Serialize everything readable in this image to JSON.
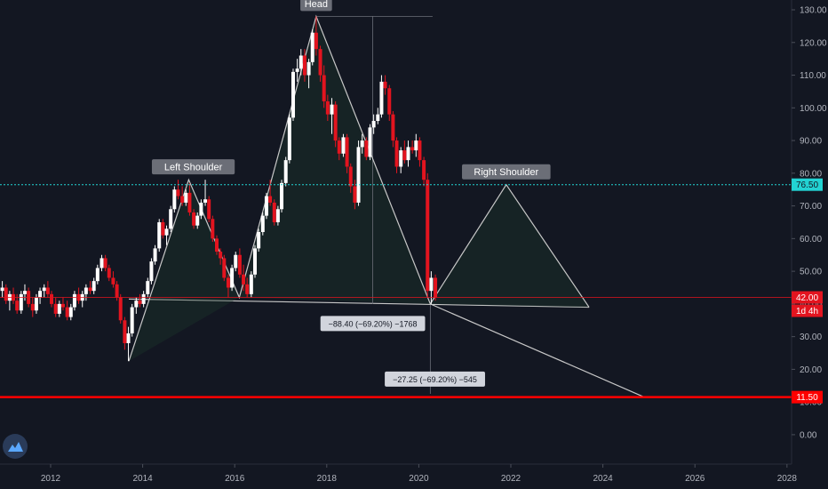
{
  "colors": {
    "background": "#131722",
    "up_candle": "#ffffff",
    "down_candle": "#e3141f",
    "neckline": "#c8c8c8",
    "horizontal_red": "#ff0000",
    "cyan_level": "#22d3d3",
    "label_box": "#6b6e77",
    "axis_text": "#b2b5be"
  },
  "chart_data": {
    "type": "candlestick",
    "y_axis": {
      "range": [
        -9,
        133
      ],
      "ticks": [
        "130.00",
        "120.00",
        "110.00",
        "100.00",
        "90.00",
        "80.00",
        "70.00",
        "60.00",
        "50.00",
        "40.00",
        "30.00",
        "20.00",
        "10.00",
        "0.00"
      ]
    },
    "x_axis": {
      "range": [
        2010.9,
        2028.1
      ],
      "ticks": [
        "2012",
        "2014",
        "2016",
        "2018",
        "2020",
        "2022",
        "2024",
        "2026",
        "2028"
      ]
    },
    "horizontal_levels": [
      {
        "value": 76.5,
        "label": "76.50",
        "style": "dotted",
        "color": "#22d3d3"
      },
      {
        "value": 42.0,
        "label": "42.00",
        "style": "solid-thin",
        "color": "#e3141f"
      },
      {
        "value": 11.5,
        "label": "11.50",
        "style": "solid-thick",
        "color": "#ff0000"
      }
    ],
    "countdown_label": "1d 4h",
    "annotations": [
      {
        "text": "Head",
        "x": 2017.77,
        "y": 128
      },
      {
        "text": "Left Shoulder",
        "x": 2015.1,
        "y": 78
      },
      {
        "text": "Right Shoulder",
        "x": 2021.9,
        "y": 76.5
      }
    ],
    "measurements": [
      {
        "text": "−88.40 (−69.20%) −1768",
        "x": 2019.0,
        "y": 34
      },
      {
        "text": "−27.25 (−69.20%) −545",
        "x": 2020.35,
        "y": 17
      }
    ],
    "pattern_lines": [
      [
        [
          2013.7,
          22.5
        ],
        [
          2015.0,
          78
        ],
        [
          2016.1,
          42
        ],
        [
          2017.77,
          128
        ],
        [
          2020.25,
          40
        ],
        [
          2021.9,
          76.5
        ],
        [
          2023.7,
          39
        ]
      ],
      [
        [
          2020.25,
          40
        ],
        [
          2024.9,
          11.5
        ]
      ]
    ],
    "neckline": [
      [
        2013.7,
        41.5
      ],
      [
        2023.7,
        39
      ]
    ],
    "measure_guides": [
      {
        "from": [
          2017.77,
          128
        ],
        "to": [
          2020.3,
          128
        ]
      },
      {
        "from": [
          2019.0,
          128
        ],
        "to": [
          2019.0,
          40
        ]
      },
      {
        "from": [
          2020.25,
          40
        ],
        "to": [
          2020.25,
          12.5
        ]
      }
    ],
    "candles": [
      [
        2010.95,
        44,
        47,
        42,
        45
      ],
      [
        2011.03,
        45,
        46,
        40,
        41
      ],
      [
        2011.11,
        41,
        44,
        38,
        43
      ],
      [
        2011.19,
        43,
        45,
        40,
        41
      ],
      [
        2011.27,
        41,
        43,
        37,
        38
      ],
      [
        2011.36,
        38,
        44,
        37,
        43
      ],
      [
        2011.44,
        43,
        46,
        41,
        44
      ],
      [
        2011.52,
        44,
        45,
        39,
        40
      ],
      [
        2011.61,
        40,
        42,
        36,
        38
      ],
      [
        2011.69,
        38,
        43,
        37,
        42
      ],
      [
        2011.77,
        42,
        45,
        40,
        44
      ],
      [
        2011.86,
        44,
        46,
        42,
        45
      ],
      [
        2011.94,
        45,
        47,
        42,
        43
      ],
      [
        2012.02,
        43,
        44,
        39,
        40
      ],
      [
        2012.11,
        40,
        42,
        36,
        37
      ],
      [
        2012.19,
        37,
        41,
        36,
        40
      ],
      [
        2012.27,
        40,
        42,
        38,
        39
      ],
      [
        2012.36,
        39,
        41,
        35,
        36
      ],
      [
        2012.44,
        36,
        40,
        35,
        39
      ],
      [
        2012.52,
        39,
        44,
        38,
        43
      ],
      [
        2012.61,
        43,
        45,
        40,
        41
      ],
      [
        2012.69,
        41,
        44,
        39,
        43
      ],
      [
        2012.77,
        43,
        46,
        41,
        45
      ],
      [
        2012.86,
        45,
        47,
        43,
        44
      ],
      [
        2012.94,
        44,
        48,
        43,
        47
      ],
      [
        2013.02,
        47,
        52,
        46,
        51
      ],
      [
        2013.11,
        51,
        55,
        50,
        54
      ],
      [
        2013.19,
        54,
        55,
        50,
        51
      ],
      [
        2013.27,
        51,
        52,
        47,
        48
      ],
      [
        2013.36,
        48,
        50,
        45,
        46
      ],
      [
        2013.44,
        46,
        47,
        41,
        42
      ],
      [
        2013.52,
        42,
        43,
        34,
        35
      ],
      [
        2013.61,
        35,
        36,
        26,
        28
      ],
      [
        2013.69,
        28,
        33,
        22.5,
        31
      ],
      [
        2013.77,
        31,
        40,
        30,
        39
      ],
      [
        2013.86,
        39,
        42,
        37,
        41
      ],
      [
        2013.94,
        41,
        43,
        39,
        40
      ],
      [
        2014.02,
        40,
        44,
        39,
        43
      ],
      [
        2014.11,
        43,
        48,
        42,
        47
      ],
      [
        2014.19,
        47,
        54,
        46,
        53
      ],
      [
        2014.27,
        53,
        58,
        52,
        57
      ],
      [
        2014.36,
        57,
        66,
        56,
        65
      ],
      [
        2014.44,
        65,
        66,
        60,
        61
      ],
      [
        2014.52,
        61,
        64,
        58,
        63
      ],
      [
        2014.61,
        63,
        70,
        62,
        69
      ],
      [
        2014.69,
        69,
        76,
        68,
        75
      ],
      [
        2014.77,
        75,
        78,
        72,
        73
      ],
      [
        2014.86,
        73,
        76,
        70,
        71
      ],
      [
        2014.94,
        71,
        75,
        70,
        74
      ],
      [
        2015.02,
        74,
        77,
        67,
        68
      ],
      [
        2015.11,
        68,
        69,
        63,
        64
      ],
      [
        2015.19,
        64,
        68,
        63,
        67
      ],
      [
        2015.27,
        67,
        72,
        66,
        71
      ],
      [
        2015.36,
        71,
        78,
        70,
        72
      ],
      [
        2015.44,
        72,
        73,
        65,
        66
      ],
      [
        2015.52,
        66,
        67,
        59,
        60
      ],
      [
        2015.61,
        60,
        61,
        55,
        56
      ],
      [
        2015.69,
        56,
        57,
        52,
        54
      ],
      [
        2015.77,
        54,
        55,
        47,
        48
      ],
      [
        2015.86,
        48,
        49,
        42,
        45
      ],
      [
        2015.94,
        45,
        52,
        44,
        51
      ],
      [
        2016.02,
        51,
        56,
        50,
        55
      ],
      [
        2016.11,
        55,
        57,
        48,
        49
      ],
      [
        2016.19,
        49,
        52,
        44,
        46
      ],
      [
        2016.27,
        46,
        48,
        42,
        43
      ],
      [
        2016.36,
        43,
        50,
        42,
        49
      ],
      [
        2016.44,
        49,
        58,
        48,
        57
      ],
      [
        2016.52,
        57,
        63,
        56,
        62
      ],
      [
        2016.61,
        62,
        68,
        61,
        67
      ],
      [
        2016.69,
        67,
        74,
        66,
        73
      ],
      [
        2016.77,
        73,
        78,
        70,
        71
      ],
      [
        2016.86,
        71,
        72,
        64,
        65
      ],
      [
        2016.94,
        65,
        70,
        64,
        69
      ],
      [
        2017.02,
        69,
        78,
        68,
        77
      ],
      [
        2017.11,
        77,
        85,
        76,
        84
      ],
      [
        2017.19,
        84,
        98,
        83,
        97
      ],
      [
        2017.27,
        97,
        112,
        96,
        111
      ],
      [
        2017.36,
        111,
        115,
        108,
        112
      ],
      [
        2017.44,
        112,
        118,
        110,
        116
      ],
      [
        2017.52,
        116,
        118,
        108,
        110
      ],
      [
        2017.61,
        110,
        115,
        106,
        114
      ],
      [
        2017.69,
        114,
        124,
        113,
        123
      ],
      [
        2017.77,
        123,
        128,
        116,
        118
      ],
      [
        2017.86,
        118,
        119,
        108,
        110
      ],
      [
        2017.94,
        110,
        113,
        100,
        102
      ],
      [
        2018.02,
        102,
        104,
        96,
        98
      ],
      [
        2018.11,
        98,
        103,
        92,
        101
      ],
      [
        2018.19,
        101,
        102,
        88,
        90
      ],
      [
        2018.27,
        90,
        91,
        84,
        86
      ],
      [
        2018.36,
        86,
        92,
        85,
        91
      ],
      [
        2018.44,
        91,
        92,
        80,
        82
      ],
      [
        2018.52,
        82,
        83,
        74,
        76
      ],
      [
        2018.61,
        76,
        78,
        69,
        71
      ],
      [
        2018.69,
        71,
        90,
        70,
        88
      ],
      [
        2018.77,
        88,
        92,
        86,
        90
      ],
      [
        2018.86,
        90,
        91,
        84,
        85
      ],
      [
        2018.94,
        85,
        95,
        84,
        94
      ],
      [
        2019.02,
        94,
        98,
        92,
        96
      ],
      [
        2019.11,
        96,
        100,
        95,
        98
      ],
      [
        2019.19,
        98,
        110,
        97,
        108
      ],
      [
        2019.27,
        108,
        110,
        104,
        106
      ],
      [
        2019.36,
        106,
        107,
        96,
        98
      ],
      [
        2019.44,
        98,
        99,
        88,
        90
      ],
      [
        2019.52,
        90,
        91,
        80,
        82
      ],
      [
        2019.61,
        82,
        88,
        80,
        87
      ],
      [
        2019.69,
        87,
        90,
        83,
        84
      ],
      [
        2019.77,
        84,
        90,
        82,
        88
      ],
      [
        2019.86,
        88,
        90,
        86,
        87
      ],
      [
        2019.94,
        87,
        92,
        85,
        90
      ],
      [
        2020.02,
        90,
        91,
        82,
        84
      ],
      [
        2020.11,
        84,
        85,
        76,
        78
      ],
      [
        2020.19,
        78,
        80,
        42,
        44
      ],
      [
        2020.27,
        44,
        50,
        40,
        48
      ],
      [
        2020.36,
        48,
        49,
        41,
        42
      ]
    ]
  }
}
